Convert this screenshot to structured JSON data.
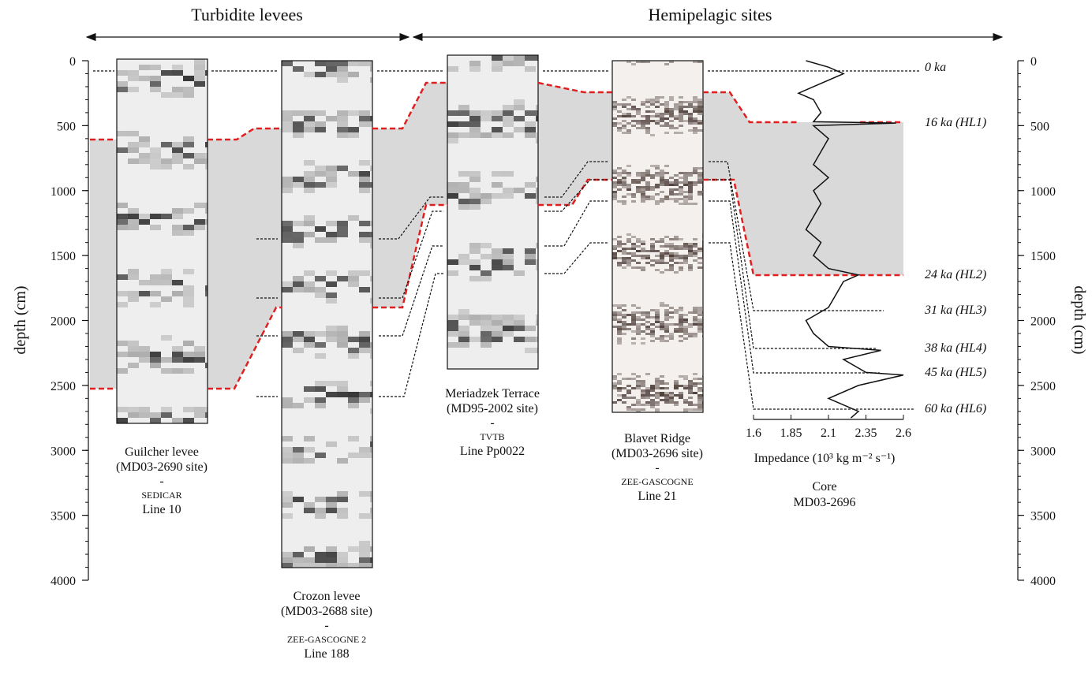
{
  "headers": [
    {
      "label": "Turbidite levees"
    },
    {
      "label": "Hemipelagic sites"
    }
  ],
  "depth_axis": {
    "label": "depth (cm)",
    "lim": [
      0,
      4000
    ],
    "ticks": [
      0,
      500,
      1000,
      1500,
      2000,
      2500,
      3000,
      3500,
      4000
    ]
  },
  "sites": [
    {
      "lines": [
        "Guilcher levee",
        "(MD03-2690 site)",
        "-",
        "SEDICAR",
        "Line 10"
      ]
    },
    {
      "lines": [
        "Crozon levee",
        "(MD03-2688 site)",
        "-",
        "ZEE-GASCOGNE 2",
        "Line 188"
      ]
    },
    {
      "lines": [
        "Meriadzek Terrace",
        "(MD95-2002 site)",
        "-",
        "TVTB",
        "Line Pp0022"
      ]
    },
    {
      "lines": [
        "Blavet Ridge",
        "(MD03-2696 site)",
        "-",
        "ZEE-GASCOGNE",
        "Line 21"
      ]
    }
  ],
  "horizons": [
    "0 ka",
    "16 ka (HL1)",
    "24 ka (HL2)",
    "31 ka (HL3)",
    "38 ka (HL4)",
    "45 ka (HL5)",
    "60 ka (HL6)"
  ],
  "core": {
    "impedance_axis": {
      "label": "Impedance (10³ kg m⁻² s⁻¹)",
      "lim": [
        1.6,
        2.6
      ],
      "ticks": [
        1.6,
        1.85,
        2.1,
        2.35,
        2.6
      ]
    },
    "depth": [
      0,
      50,
      100,
      250,
      300,
      400,
      470,
      480,
      500,
      600,
      700,
      800,
      900,
      1000,
      1100,
      1200,
      1300,
      1400,
      1500,
      1600,
      1650,
      1700,
      1800,
      1900,
      2000,
      2100,
      2200,
      2230,
      2300,
      2400,
      2420,
      2500,
      2600,
      2700,
      2750
    ],
    "impedance": [
      1.95,
      2.1,
      2.2,
      1.9,
      2.0,
      2.05,
      2.0,
      2.55,
      2.0,
      2.1,
      2.05,
      2.0,
      2.1,
      2.0,
      2.05,
      2.0,
      1.95,
      2.05,
      2.0,
      2.1,
      2.3,
      2.2,
      2.15,
      2.1,
      1.95,
      2.0,
      2.1,
      2.45,
      2.2,
      2.35,
      2.6,
      2.3,
      2.1,
      2.3,
      2.25
    ],
    "lines": [
      "Core",
      "MD03-2696"
    ]
  }
}
